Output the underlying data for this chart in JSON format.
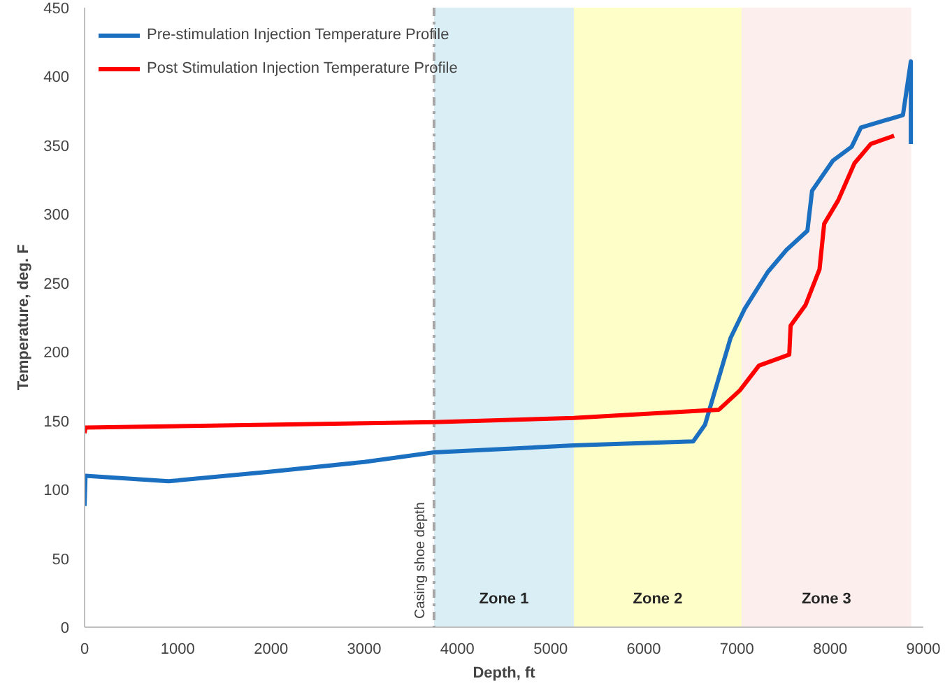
{
  "chart_data": {
    "type": "line",
    "xlabel": "Depth, ft",
    "ylabel": "Temperature, deg. F",
    "xlim": [
      0,
      9000
    ],
    "ylim": [
      0,
      450
    ],
    "xticks": [
      0,
      1000,
      2000,
      3000,
      4000,
      5000,
      6000,
      7000,
      8000,
      9000
    ],
    "yticks": [
      0,
      50,
      100,
      150,
      200,
      250,
      300,
      350,
      400,
      450
    ],
    "grid": false,
    "legend": "top left",
    "line_style": "solid",
    "marker": "none",
    "series": [
      {
        "name": "Pre-stimulation Injection Temperature Profile",
        "color": "#1a6fc0",
        "x": [
          0,
          10,
          900,
          2000,
          3000,
          3750,
          5250,
          6531,
          6657,
          6931,
          7081,
          7331,
          7531,
          7756,
          7806,
          8031,
          8231,
          8331,
          8781,
          8866,
          8866
        ],
        "values": [
          88,
          110,
          106,
          113,
          120,
          127,
          132,
          135,
          147,
          210,
          231,
          258,
          274,
          288,
          317,
          339,
          349,
          363,
          372,
          411,
          351
        ]
      },
      {
        "name": "Post Stimulation Injection Temperature Profile",
        "color": "#ff0000",
        "x": [
          0,
          10,
          3750,
          5250,
          6807,
          7031,
          7236,
          7561,
          7576,
          7736,
          7886,
          7936,
          8086,
          8261,
          8436,
          8686
        ],
        "values": [
          141,
          145,
          149,
          152,
          158,
          172,
          190,
          198,
          219,
          234,
          260,
          293,
          310,
          337,
          351,
          357
        ]
      }
    ],
    "ref_lines": [
      {
        "axis": "x",
        "value": 3750,
        "label": "Casing shoe depth",
        "color": "#a6a6a6",
        "line_style": "dashdot"
      }
    ],
    "bands": [
      {
        "axis": "x",
        "from": 3750,
        "to": 5250,
        "label": "Zone 1",
        "color": "#d9eef5"
      },
      {
        "axis": "x",
        "from": 5250,
        "to": 7050,
        "label": "Zone 2",
        "color": "#fefec8"
      },
      {
        "axis": "x",
        "from": 7050,
        "to": 8870,
        "label": "Zone 3",
        "color": "#fbeeec"
      }
    ]
  }
}
